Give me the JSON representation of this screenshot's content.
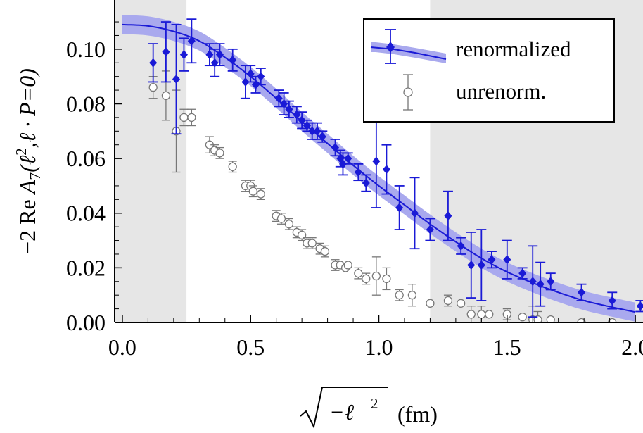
{
  "chart_data": {
    "type": "scatter",
    "title": "",
    "xlabel_parts": {
      "radical_content": "−ℓ",
      "exponent": "2",
      "unit": "(fm)"
    },
    "ylabel_parts": {
      "prefix": "−2 Re ",
      "symbol": "A",
      "subscript": "7",
      "args_open": "(ℓ",
      "args_exp": "2",
      "args_rest": ",ℓ · P=0)"
    },
    "xlim": [
      -0.03,
      2.03
    ],
    "ylim": [
      0.0,
      0.118
    ],
    "x_ticks": [
      0.0,
      0.5,
      1.0,
      1.5,
      2.0
    ],
    "x_tick_labels": [
      "0.0",
      "0.5",
      "1.0",
      "1.5",
      "2.0"
    ],
    "y_ticks": [
      0.0,
      0.02,
      0.04,
      0.06,
      0.08,
      0.1
    ],
    "y_tick_labels": [
      "0.00",
      "0.02",
      "0.04",
      "0.06",
      "0.08",
      "0.10"
    ],
    "shaded_regions_x": [
      [
        -0.03,
        0.25
      ],
      [
        1.2,
        2.03
      ]
    ],
    "legend_position": "top-right",
    "colors": {
      "renorm": "#1a1ad6",
      "band": "#a9a9ee",
      "unrenorm": "#777777",
      "shade": "#e6e6e6"
    },
    "fit": {
      "name": "fit",
      "x": [
        0.0,
        0.1,
        0.2,
        0.3,
        0.4,
        0.5,
        0.6,
        0.7,
        0.8,
        0.9,
        1.0,
        1.1,
        1.2,
        1.3,
        1.4,
        1.5,
        1.6,
        1.7,
        1.8,
        1.9,
        2.0
      ],
      "y": [
        0.109,
        0.1085,
        0.1065,
        0.103,
        0.097,
        0.09,
        0.082,
        0.0735,
        0.0655,
        0.0575,
        0.05,
        0.043,
        0.036,
        0.0295,
        0.0235,
        0.0185,
        0.0145,
        0.011,
        0.008,
        0.0058,
        0.0038
      ],
      "band": 0.0035
    },
    "series": [
      {
        "name": "renormalized",
        "marker": "filled-diamond",
        "points": [
          {
            "x": 0.12,
            "y": 0.095,
            "err": 0.007
          },
          {
            "x": 0.17,
            "y": 0.099,
            "err": 0.011
          },
          {
            "x": 0.21,
            "y": 0.089,
            "err": 0.02
          },
          {
            "x": 0.24,
            "y": 0.098,
            "err": 0.006
          },
          {
            "x": 0.27,
            "y": 0.103,
            "err": 0.008
          },
          {
            "x": 0.34,
            "y": 0.098,
            "err": 0.004
          },
          {
            "x": 0.36,
            "y": 0.095,
            "err": 0.005
          },
          {
            "x": 0.38,
            "y": 0.098,
            "err": 0.004
          },
          {
            "x": 0.43,
            "y": 0.096,
            "err": 0.004
          },
          {
            "x": 0.48,
            "y": 0.088,
            "err": 0.006
          },
          {
            "x": 0.5,
            "y": 0.091,
            "err": 0.003
          },
          {
            "x": 0.52,
            "y": 0.087,
            "err": 0.003
          },
          {
            "x": 0.54,
            "y": 0.09,
            "err": 0.003
          },
          {
            "x": 0.61,
            "y": 0.082,
            "err": 0.003
          },
          {
            "x": 0.63,
            "y": 0.08,
            "err": 0.004
          },
          {
            "x": 0.65,
            "y": 0.078,
            "err": 0.003
          },
          {
            "x": 0.68,
            "y": 0.076,
            "err": 0.003
          },
          {
            "x": 0.7,
            "y": 0.074,
            "err": 0.003
          },
          {
            "x": 0.72,
            "y": 0.072,
            "err": 0.002
          },
          {
            "x": 0.74,
            "y": 0.07,
            "err": 0.003
          },
          {
            "x": 0.76,
            "y": 0.07,
            "err": 0.003
          },
          {
            "x": 0.78,
            "y": 0.068,
            "err": 0.002
          },
          {
            "x": 0.83,
            "y": 0.064,
            "err": 0.003
          },
          {
            "x": 0.85,
            "y": 0.06,
            "err": 0.003
          },
          {
            "x": 0.86,
            "y": 0.058,
            "err": 0.004
          },
          {
            "x": 0.88,
            "y": 0.06,
            "err": 0.002
          },
          {
            "x": 0.92,
            "y": 0.055,
            "err": 0.003
          },
          {
            "x": 0.95,
            "y": 0.051,
            "err": 0.003
          },
          {
            "x": 0.99,
            "y": 0.059,
            "err": 0.017
          },
          {
            "x": 1.03,
            "y": 0.056,
            "err": 0.009
          },
          {
            "x": 1.08,
            "y": 0.042,
            "err": 0.008
          },
          {
            "x": 1.14,
            "y": 0.04,
            "err": 0.013
          },
          {
            "x": 1.2,
            "y": 0.034,
            "err": 0.004
          },
          {
            "x": 1.27,
            "y": 0.039,
            "err": 0.009
          },
          {
            "x": 1.32,
            "y": 0.028,
            "err": 0.003
          },
          {
            "x": 1.36,
            "y": 0.021,
            "err": 0.012
          },
          {
            "x": 1.4,
            "y": 0.021,
            "err": 0.013
          },
          {
            "x": 1.44,
            "y": 0.023,
            "err": 0.003
          },
          {
            "x": 1.5,
            "y": 0.023,
            "err": 0.007
          },
          {
            "x": 1.56,
            "y": 0.018,
            "err": 0.002
          },
          {
            "x": 1.6,
            "y": 0.015,
            "err": 0.013
          },
          {
            "x": 1.63,
            "y": 0.014,
            "err": 0.008
          },
          {
            "x": 1.67,
            "y": 0.015,
            "err": 0.003
          },
          {
            "x": 1.79,
            "y": 0.011,
            "err": 0.003
          },
          {
            "x": 1.91,
            "y": 0.008,
            "err": 0.003
          },
          {
            "x": 2.02,
            "y": 0.006,
            "err": 0.002
          }
        ]
      },
      {
        "name": "unrenorm.",
        "marker": "open-circle",
        "points": [
          {
            "x": 0.12,
            "y": 0.086,
            "err": 0.004
          },
          {
            "x": 0.17,
            "y": 0.083,
            "err": 0.009
          },
          {
            "x": 0.21,
            "y": 0.07,
            "err": 0.015
          },
          {
            "x": 0.24,
            "y": 0.075,
            "err": 0.003
          },
          {
            "x": 0.27,
            "y": 0.075,
            "err": 0.003
          },
          {
            "x": 0.34,
            "y": 0.065,
            "err": 0.003
          },
          {
            "x": 0.36,
            "y": 0.063,
            "err": 0.002
          },
          {
            "x": 0.38,
            "y": 0.062,
            "err": 0.002
          },
          {
            "x": 0.43,
            "y": 0.057,
            "err": 0.002
          },
          {
            "x": 0.48,
            "y": 0.05,
            "err": 0.002
          },
          {
            "x": 0.5,
            "y": 0.05,
            "err": 0.002
          },
          {
            "x": 0.51,
            "y": 0.048,
            "err": 0.002
          },
          {
            "x": 0.54,
            "y": 0.047,
            "err": 0.002
          },
          {
            "x": 0.6,
            "y": 0.039,
            "err": 0.002
          },
          {
            "x": 0.62,
            "y": 0.038,
            "err": 0.002
          },
          {
            "x": 0.65,
            "y": 0.036,
            "err": 0.002
          },
          {
            "x": 0.68,
            "y": 0.033,
            "err": 0.002
          },
          {
            "x": 0.7,
            "y": 0.032,
            "err": 0.002
          },
          {
            "x": 0.72,
            "y": 0.029,
            "err": 0.002
          },
          {
            "x": 0.74,
            "y": 0.029,
            "err": 0.002
          },
          {
            "x": 0.77,
            "y": 0.027,
            "err": 0.002
          },
          {
            "x": 0.79,
            "y": 0.026,
            "err": 0.002
          },
          {
            "x": 0.83,
            "y": 0.021,
            "err": 0.002
          },
          {
            "x": 0.85,
            "y": 0.021,
            "err": 0.001
          },
          {
            "x": 0.87,
            "y": 0.02,
            "err": 0.001
          },
          {
            "x": 0.88,
            "y": 0.021,
            "err": 0.001
          },
          {
            "x": 0.92,
            "y": 0.018,
            "err": 0.002
          },
          {
            "x": 0.95,
            "y": 0.016,
            "err": 0.002
          },
          {
            "x": 0.99,
            "y": 0.017,
            "err": 0.007
          },
          {
            "x": 1.03,
            "y": 0.016,
            "err": 0.004
          },
          {
            "x": 1.08,
            "y": 0.01,
            "err": 0.002
          },
          {
            "x": 1.13,
            "y": 0.01,
            "err": 0.004
          },
          {
            "x": 1.2,
            "y": 0.007,
            "err": 0.001
          },
          {
            "x": 1.27,
            "y": 0.008,
            "err": 0.002
          },
          {
            "x": 1.32,
            "y": 0.007,
            "err": 0.001
          },
          {
            "x": 1.36,
            "y": 0.003,
            "err": 0.003
          },
          {
            "x": 1.4,
            "y": 0.003,
            "err": 0.003
          },
          {
            "x": 1.43,
            "y": 0.003,
            "err": 0.001
          },
          {
            "x": 1.5,
            "y": 0.003,
            "err": 0.002
          },
          {
            "x": 1.56,
            "y": 0.002,
            "err": 0.001
          },
          {
            "x": 1.6,
            "y": 0.001,
            "err": 0.005
          },
          {
            "x": 1.62,
            "y": 0.001,
            "err": 0.003
          },
          {
            "x": 1.67,
            "y": 0.001,
            "err": 0.001
          },
          {
            "x": 1.79,
            "y": 0.0,
            "err": 0.001
          },
          {
            "x": 1.91,
            "y": 0.0,
            "err": 0.001
          }
        ]
      }
    ]
  }
}
